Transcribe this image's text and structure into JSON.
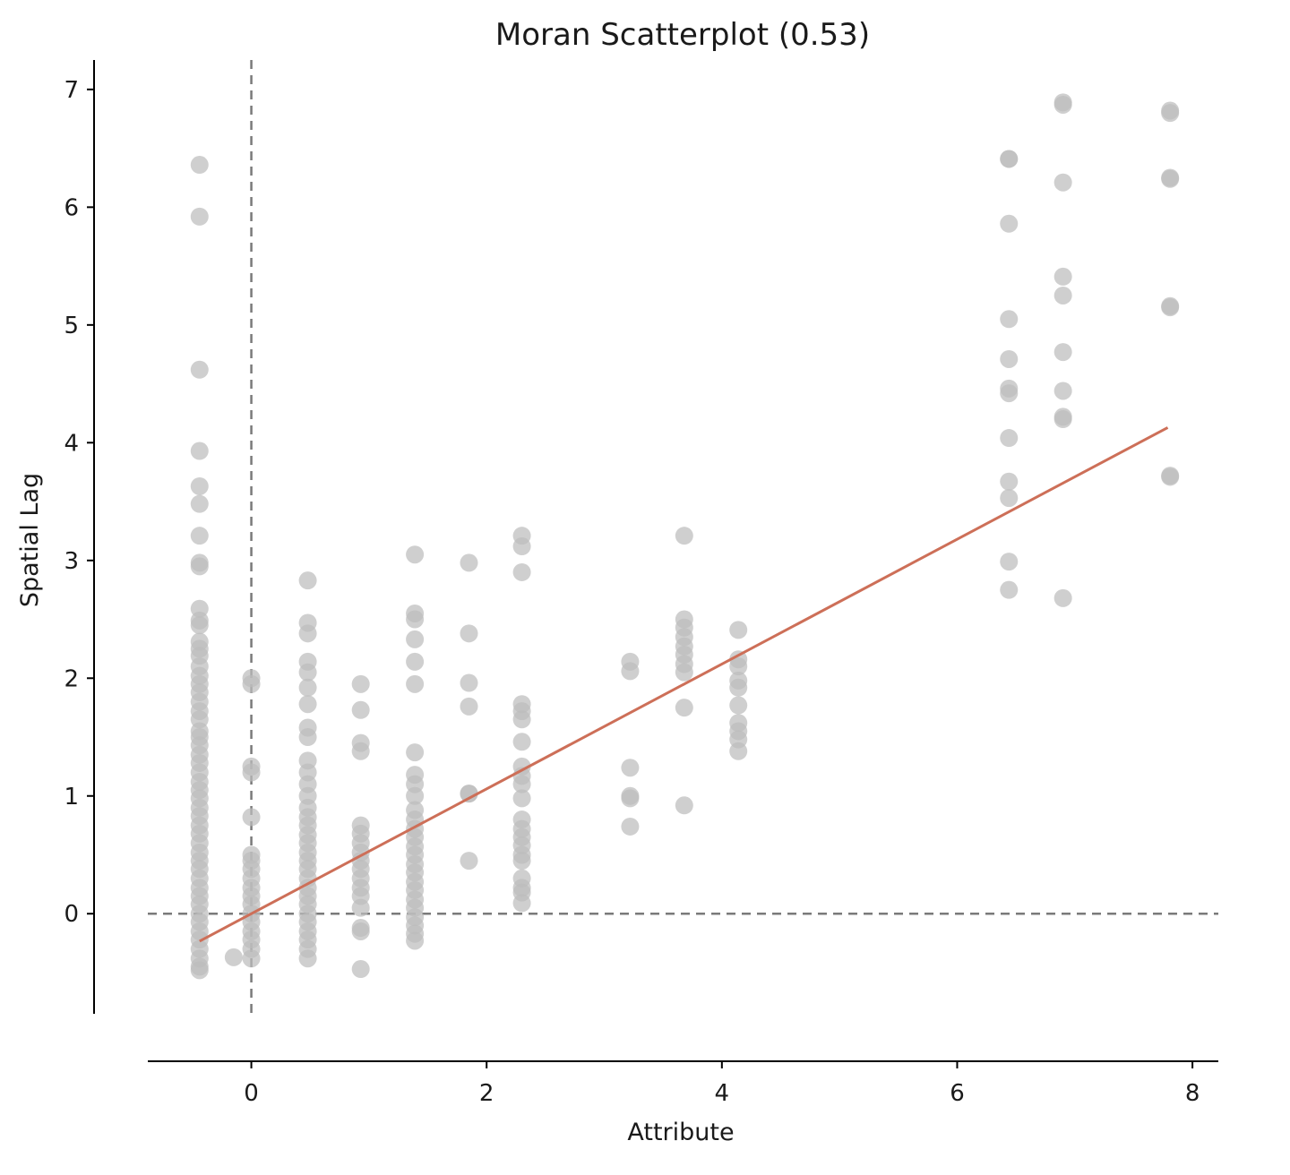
{
  "chart_data": {
    "type": "scatter",
    "title": "Moran Scatterplot (0.53)",
    "xlabel": "Attribute",
    "ylabel": "Spatial Lag",
    "xlim": [
      -0.88,
      8.22
    ],
    "ylim": [
      -0.85,
      7.25
    ],
    "xticks": [
      0,
      2,
      4,
      6,
      8
    ],
    "yticks": [
      0,
      1,
      2,
      3,
      4,
      5,
      6,
      7
    ],
    "grid": false,
    "legend": "none",
    "colors": {
      "points": "#bdbdbd",
      "fit_line": "#cd6f58",
      "reference_lines": "#7a7a7a",
      "axes": "#000000"
    },
    "reference_lines": {
      "x": 0,
      "y": 0
    },
    "fit_line": {
      "slope": 0.53,
      "intercept": 0.0,
      "x": [
        -0.44,
        7.79
      ]
    },
    "columns": [
      {
        "x": -0.44,
        "y": [
          6.36,
          5.92,
          4.62,
          3.93,
          3.63,
          3.48,
          3.21,
          2.98,
          2.95,
          2.59,
          2.49,
          2.45,
          2.31,
          2.25,
          2.19,
          2.1,
          2.02,
          1.95,
          1.88,
          1.8,
          1.72,
          1.65,
          1.55,
          1.5,
          1.43,
          1.35,
          1.28,
          1.2,
          1.12,
          1.05,
          0.98,
          0.9,
          0.83,
          0.75,
          0.68,
          0.6,
          0.52,
          0.45,
          0.38,
          0.3,
          0.22,
          0.15,
          0.08,
          0.0,
          -0.07,
          -0.15,
          -0.22,
          -0.3,
          -0.38,
          -0.45,
          -0.48
        ]
      },
      {
        "x": -0.15,
        "y": [
          -0.37
        ]
      },
      {
        "x": 0.0,
        "y": [
          2.0,
          1.95,
          1.25,
          1.2,
          0.82,
          0.5,
          0.45,
          0.38,
          0.3,
          0.22,
          0.15,
          0.08,
          0.0,
          -0.07,
          -0.15,
          -0.22,
          -0.3,
          -0.38
        ]
      },
      {
        "x": 0.48,
        "y": [
          2.83,
          2.47,
          2.38,
          2.14,
          2.05,
          1.92,
          1.78,
          1.58,
          1.5,
          1.3,
          1.2,
          1.1,
          1.0,
          0.9,
          0.82,
          0.75,
          0.67,
          0.6,
          0.52,
          0.45,
          0.38,
          0.3,
          0.22,
          0.15,
          0.08,
          0.0,
          -0.07,
          -0.15,
          -0.22,
          -0.3,
          -0.38
        ]
      },
      {
        "x": 0.93,
        "y": [
          1.95,
          1.73,
          1.45,
          1.38,
          0.75,
          0.68,
          0.6,
          0.52,
          0.45,
          0.38,
          0.3,
          0.22,
          0.15,
          0.05,
          -0.12,
          -0.15,
          -0.47
        ]
      },
      {
        "x": 1.39,
        "y": [
          3.05,
          2.55,
          2.5,
          2.33,
          2.14,
          1.95,
          1.37,
          1.18,
          1.1,
          1.0,
          0.88,
          0.8,
          0.72,
          0.65,
          0.57,
          0.5,
          0.42,
          0.35,
          0.27,
          0.2,
          0.12,
          0.05,
          -0.03,
          -0.1,
          -0.17,
          -0.23
        ]
      },
      {
        "x": 1.85,
        "y": [
          2.98,
          2.38,
          1.96,
          1.76,
          1.02,
          1.02,
          0.45
        ]
      },
      {
        "x": 2.3,
        "y": [
          3.21,
          3.12,
          2.9,
          1.78,
          1.72,
          1.65,
          1.46,
          1.25,
          1.17,
          1.1,
          0.98,
          0.8,
          0.72,
          0.65,
          0.58,
          0.5,
          0.45,
          0.3,
          0.22,
          0.18,
          0.09
        ]
      },
      {
        "x": 3.22,
        "y": [
          2.14,
          2.06,
          1.24,
          1.0,
          0.98,
          0.74
        ]
      },
      {
        "x": 3.68,
        "y": [
          3.21,
          2.5,
          2.43,
          2.35,
          2.27,
          2.2,
          2.12,
          2.05,
          1.75,
          0.92
        ]
      },
      {
        "x": 4.14,
        "y": [
          2.41,
          2.16,
          2.1,
          1.98,
          1.92,
          1.77,
          1.62,
          1.55,
          1.48,
          1.38
        ]
      },
      {
        "x": 6.44,
        "y": [
          6.41,
          6.41,
          5.86,
          5.05,
          4.71,
          4.46,
          4.42,
          4.04,
          3.67,
          3.53,
          2.99,
          2.75
        ]
      },
      {
        "x": 6.9,
        "y": [
          6.89,
          6.87,
          6.21,
          5.41,
          5.25,
          4.77,
          4.44,
          4.2,
          4.22,
          2.68
        ]
      },
      {
        "x": 7.81,
        "y": [
          6.82,
          6.8,
          6.25,
          6.24,
          5.16,
          5.15,
          3.72,
          3.71
        ]
      }
    ]
  }
}
